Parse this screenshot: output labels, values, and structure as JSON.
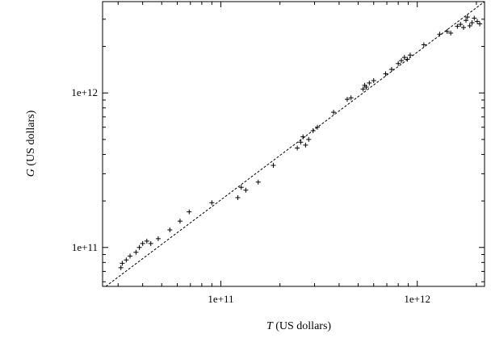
{
  "chart_data": {
    "type": "scatter",
    "title": "",
    "xlabel_var": "T",
    "xlabel_unit": " (US dollars)",
    "ylabel_var": "G",
    "ylabel_unit": " (US dollars)",
    "xscale": "log",
    "yscale": "log",
    "xlim": [
      25000000000.0,
      2200000000000.0
    ],
    "ylim": [
      56000000000.0,
      3900000000000.0
    ],
    "xticks": [
      {
        "value": 100000000000.0,
        "label": "1e+11"
      },
      {
        "value": 1000000000000.0,
        "label": "1e+12"
      }
    ],
    "yticks": [
      {
        "value": 100000000000.0,
        "label": "1e+11"
      },
      {
        "value": 1000000000000.0,
        "label": "1e+12"
      }
    ],
    "grid": false,
    "legend": "none",
    "marker": "+",
    "fit_line": {
      "style": "dashed",
      "x": [
        25000000000.0,
        2200000000000.0
      ],
      "y": [
        54000000000.0,
        3900000000000.0
      ]
    },
    "points": [
      {
        "x": 31000000000.0,
        "y": 74000000000.0
      },
      {
        "x": 31500000000.0,
        "y": 79000000000.0
      },
      {
        "x": 33000000000.0,
        "y": 83000000000.0
      },
      {
        "x": 34500000000.0,
        "y": 88000000000.0
      },
      {
        "x": 37000000000.0,
        "y": 93000000000.0
      },
      {
        "x": 38500000000.0,
        "y": 100000000000.0
      },
      {
        "x": 40000000000.0,
        "y": 106000000000.0
      },
      {
        "x": 42000000000.0,
        "y": 110000000000.0
      },
      {
        "x": 44000000000.0,
        "y": 106000000000.0
      },
      {
        "x": 48000000000.0,
        "y": 114000000000.0
      },
      {
        "x": 55000000000.0,
        "y": 130000000000.0
      },
      {
        "x": 62000000000.0,
        "y": 148000000000.0
      },
      {
        "x": 69000000000.0,
        "y": 170000000000.0
      },
      {
        "x": 90000000000.0,
        "y": 195000000000.0
      },
      {
        "x": 122000000000.0,
        "y": 210000000000.0
      },
      {
        "x": 127000000000.0,
        "y": 245000000000.0
      },
      {
        "x": 134000000000.0,
        "y": 235000000000.0
      },
      {
        "x": 155000000000.0,
        "y": 265000000000.0
      },
      {
        "x": 185000000000.0,
        "y": 340000000000.0
      },
      {
        "x": 245000000000.0,
        "y": 440000000000.0
      },
      {
        "x": 255000000000.0,
        "y": 480000000000.0
      },
      {
        "x": 262000000000.0,
        "y": 520000000000.0
      },
      {
        "x": 270000000000.0,
        "y": 460000000000.0
      },
      {
        "x": 280000000000.0,
        "y": 500000000000.0
      },
      {
        "x": 295000000000.0,
        "y": 570000000000.0
      },
      {
        "x": 310000000000.0,
        "y": 600000000000.0
      },
      {
        "x": 375000000000.0,
        "y": 750000000000.0
      },
      {
        "x": 440000000000.0,
        "y": 910000000000.0
      },
      {
        "x": 460000000000.0,
        "y": 930000000000.0
      },
      {
        "x": 530000000000.0,
        "y": 1060000000000.0
      },
      {
        "x": 540000000000.0,
        "y": 1120000000000.0
      },
      {
        "x": 550000000000.0,
        "y": 1090000000000.0
      },
      {
        "x": 570000000000.0,
        "y": 1160000000000.0
      },
      {
        "x": 600000000000.0,
        "y": 1200000000000.0
      },
      {
        "x": 690000000000.0,
        "y": 1330000000000.0
      },
      {
        "x": 740000000000.0,
        "y": 1420000000000.0
      },
      {
        "x": 800000000000.0,
        "y": 1550000000000.0
      },
      {
        "x": 830000000000.0,
        "y": 1620000000000.0
      },
      {
        "x": 860000000000.0,
        "y": 1700000000000.0
      },
      {
        "x": 890000000000.0,
        "y": 1650000000000.0
      },
      {
        "x": 920000000000.0,
        "y": 1760000000000.0
      },
      {
        "x": 1080000000000.0,
        "y": 2050000000000.0
      },
      {
        "x": 1300000000000.0,
        "y": 2400000000000.0
      },
      {
        "x": 1420000000000.0,
        "y": 2500000000000.0
      },
      {
        "x": 1480000000000.0,
        "y": 2440000000000.0
      },
      {
        "x": 1600000000000.0,
        "y": 2700000000000.0
      },
      {
        "x": 1660000000000.0,
        "y": 2780000000000.0
      },
      {
        "x": 1720000000000.0,
        "y": 2650000000000.0
      },
      {
        "x": 1770000000000.0,
        "y": 2950000000000.0
      },
      {
        "x": 1800000000000.0,
        "y": 3100000000000.0
      },
      {
        "x": 1850000000000.0,
        "y": 2720000000000.0
      },
      {
        "x": 1900000000000.0,
        "y": 2850000000000.0
      },
      {
        "x": 1950000000000.0,
        "y": 3050000000000.0
      },
      {
        "x": 2020000000000.0,
        "y": 2900000000000.0
      },
      {
        "x": 2080000000000.0,
        "y": 2800000000000.0
      }
    ]
  }
}
